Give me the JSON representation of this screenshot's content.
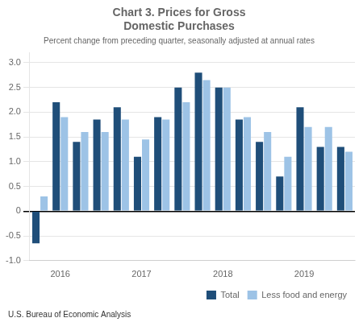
{
  "chart_data": {
    "type": "bar",
    "title": [
      "Chart 3. Prices for Gross",
      "Domestic Purchases"
    ],
    "subtitle": "Percent change from preceding quarter, seasonally adjusted at annual rates",
    "annotations": [
      "U.S. Bureau of Economic Analysis"
    ],
    "categories": [
      null,
      "2016",
      null,
      null,
      null,
      "2017",
      null,
      null,
      null,
      "2018",
      null,
      null,
      null,
      "2019",
      null,
      null
    ],
    "series": [
      {
        "name": "Total",
        "color": "#1F4E79",
        "values": [
          -0.65,
          2.2,
          1.4,
          1.85,
          2.1,
          1.1,
          1.9,
          2.5,
          2.8,
          2.5,
          1.85,
          1.4,
          0.7,
          2.1,
          1.3,
          1.3
        ]
      },
      {
        "name": "Less food and energy",
        "color": "#9DC3E6",
        "values": [
          0.3,
          1.9,
          1.6,
          1.6,
          1.85,
          1.45,
          1.85,
          2.2,
          2.65,
          2.5,
          1.9,
          1.6,
          1.1,
          1.7,
          1.7,
          1.2
        ]
      }
    ],
    "ylim": [
      -1.0,
      3.2
    ],
    "yticks": [
      {
        "value": -1.0,
        "label": "-1.0"
      },
      -0.5,
      0,
      0.5,
      {
        "value": 1.0,
        "label": "1.0"
      },
      1.5,
      {
        "value": 2.0,
        "label": "2.0"
      },
      2.5,
      {
        "value": 3.0,
        "label": "3.0"
      }
    ],
    "grid": true,
    "legend": "lower right"
  }
}
